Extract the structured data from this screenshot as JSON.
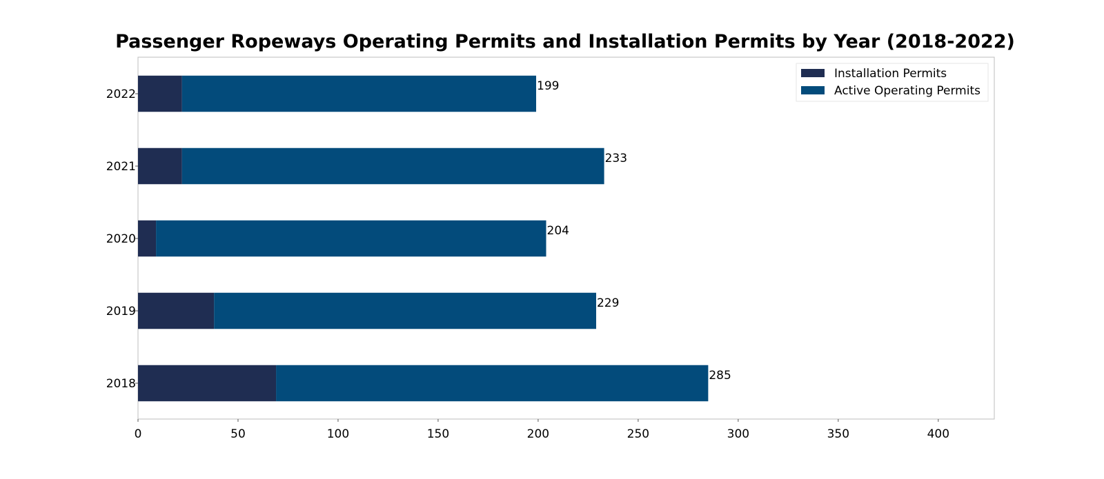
{
  "chart_data": {
    "type": "bar",
    "orientation": "horizontal",
    "stacked": true,
    "title": "Passenger Ropeways Operating Permits and Installation Permits by Year (2018-2022)",
    "xlabel": "",
    "ylabel": "",
    "categories": [
      "2018",
      "2019",
      "2020",
      "2021",
      "2022"
    ],
    "series": [
      {
        "name": "Installation Permits",
        "values": [
          69,
          38,
          9,
          22,
          22
        ],
        "color": "#1f2d52"
      },
      {
        "name": "Active Operating Permits",
        "values": [
          216,
          191,
          195,
          211,
          177
        ],
        "color": "#034b7b"
      }
    ],
    "totals": [
      285,
      229,
      204,
      233,
      199
    ],
    "data_labels": [
      "285",
      "229",
      "204",
      "233",
      "199"
    ],
    "xlim": [
      0,
      428
    ],
    "xticks": [
      0,
      50,
      100,
      150,
      200,
      250,
      300,
      350,
      400
    ],
    "xtick_labels": [
      "0",
      "50",
      "100",
      "150",
      "200",
      "250",
      "300",
      "350",
      "400"
    ],
    "grid": false,
    "legend_position": "top-right"
  }
}
